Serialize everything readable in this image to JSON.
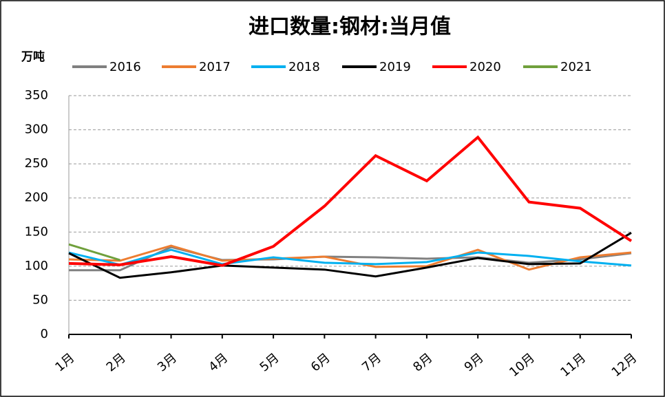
{
  "chart_data": {
    "type": "line",
    "title": "进口数量:钢材:当月值",
    "y_label": "万吨",
    "categories": [
      "1月",
      "2月",
      "3月",
      "4月",
      "5月",
      "6月",
      "7月",
      "8月",
      "9月",
      "10月",
      "11月",
      "12月"
    ],
    "series": [
      {
        "name": "2016",
        "color": "#808080",
        "values": [
          94,
          94,
          128,
          109,
          110,
          114,
          113,
          111,
          113,
          105,
          110,
          119
        ]
      },
      {
        "name": "2017",
        "color": "#ed7d31",
        "values": [
          110,
          108,
          130,
          108,
          111,
          114,
          99,
          100,
          124,
          95,
          113,
          120
        ]
      },
      {
        "name": "2018",
        "color": "#00b0f0",
        "values": [
          120,
          102,
          124,
          103,
          113,
          105,
          103,
          106,
          120,
          115,
          107,
          101
        ]
      },
      {
        "name": "2019",
        "color": "#000000",
        "values": [
          119,
          83,
          91,
          101,
          98,
          95,
          85,
          98,
          112,
          103,
          104,
          149
        ]
      },
      {
        "name": "2020",
        "color": "#ff0000",
        "values": [
          104,
          102,
          114,
          101,
          129,
          188,
          262,
          225,
          289,
          194,
          185,
          137
        ]
      },
      {
        "name": "2021",
        "color": "#70a03c",
        "values": [
          132,
          109,
          null,
          null,
          null,
          null,
          null,
          null,
          null,
          null,
          null,
          null
        ]
      }
    ],
    "ylim": [
      0,
      350
    ],
    "yticks": [
      0,
      50,
      100,
      150,
      200,
      250,
      300,
      350
    ],
    "grid": true,
    "legend": "top"
  }
}
